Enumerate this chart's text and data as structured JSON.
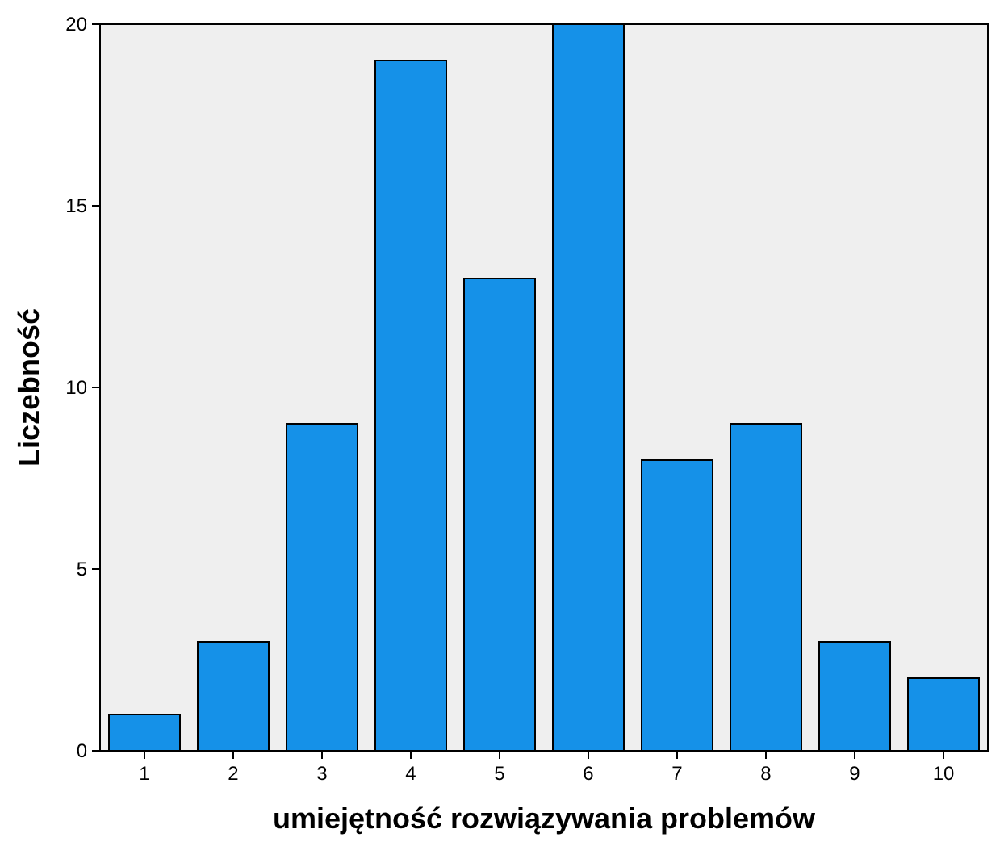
{
  "chart_data": {
    "type": "bar",
    "xlabel": "umiejętność rozwiązywania problemów",
    "ylabel": "Liczebność",
    "categories": [
      "1",
      "2",
      "3",
      "4",
      "5",
      "6",
      "7",
      "8",
      "9",
      "10"
    ],
    "values": [
      1,
      3,
      9,
      19,
      13,
      20,
      8,
      9,
      3,
      2
    ],
    "color": "#1591e8",
    "ylim": [
      0,
      20
    ],
    "yticks": [
      0,
      5,
      10,
      15,
      20
    ]
  }
}
